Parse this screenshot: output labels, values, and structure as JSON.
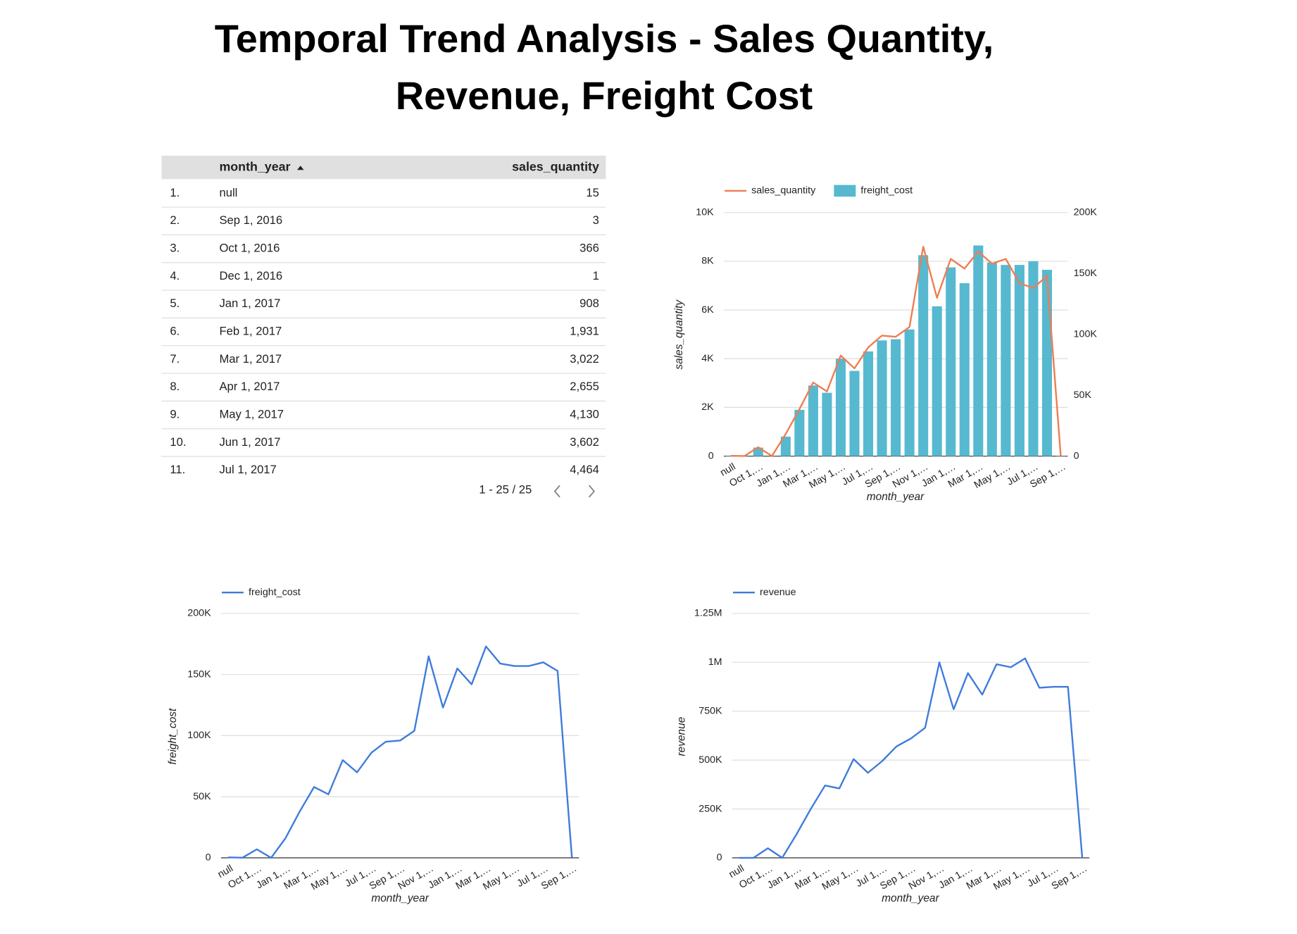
{
  "title": [
    "Temporal Trend Analysis - Sales Quantity,",
    "Revenue, Freight Cost"
  ],
  "table": {
    "columns": [
      "month_year",
      "sales_quantity"
    ],
    "rows": [
      [
        "1.",
        "null",
        "15"
      ],
      [
        "2.",
        "Sep 1, 2016",
        "3"
      ],
      [
        "3.",
        "Oct 1, 2016",
        "366"
      ],
      [
        "4.",
        "Dec 1, 2016",
        "1"
      ],
      [
        "5.",
        "Jan 1, 2017",
        "908"
      ],
      [
        "6.",
        "Feb 1, 2017",
        "1,931"
      ],
      [
        "7.",
        "Mar 1, 2017",
        "3,022"
      ],
      [
        "8.",
        "Apr 1, 2017",
        "2,655"
      ],
      [
        "9.",
        "May 1, 2017",
        "4,130"
      ],
      [
        "10.",
        "Jun 1, 2017",
        "3,602"
      ],
      [
        "11.",
        "Jul 1, 2017",
        "4,464"
      ]
    ],
    "pagination": "1 - 25 / 25"
  },
  "chart_data": [
    {
      "type": "combo",
      "categories": [
        "null",
        null,
        "Oct 1,…",
        null,
        "Jan 1,…",
        null,
        "Mar 1,…",
        null,
        "May 1,…",
        null,
        "Jul 1,…",
        null,
        "Sep 1,…",
        null,
        "Nov 1,…",
        null,
        "Jan 1,…",
        null,
        "Mar 1,…",
        null,
        "May 1,…",
        null,
        "Jul 1,…",
        null,
        "Sep 1,…"
      ],
      "x_label": "month_year",
      "y_label": "sales_quantity",
      "legend": "top",
      "grid": true,
      "ylim": [
        0,
        10000
      ],
      "yticks": [
        0,
        {
          "value": 2000,
          "label": "2K"
        },
        {
          "value": 4000,
          "label": "4K"
        },
        {
          "value": 6000,
          "label": "6K"
        },
        {
          "value": 8000,
          "label": "8K"
        },
        {
          "value": 10000,
          "label": "10K"
        }
      ],
      "y2lim": [
        0,
        200000
      ],
      "y2ticks": [
        0,
        {
          "value": 50000,
          "label": "50K"
        },
        {
          "value": 100000,
          "label": "100K"
        },
        {
          "value": 150000,
          "label": "150K"
        },
        {
          "value": 200000,
          "label": "200K"
        }
      ],
      "series": [
        {
          "name": "sales_quantity",
          "type": "line",
          "color": "#ef7d52",
          "values": [
            15,
            3,
            366,
            1,
            908,
            1931,
            3022,
            2655,
            4130,
            3602,
            4464,
            4950,
            4900,
            5300,
            8600,
            6500,
            8100,
            7700,
            8400,
            7900,
            8100,
            7100,
            6900,
            7400,
            0
          ]
        },
        {
          "name": "freight_cost",
          "type": "bar",
          "axis": "y2",
          "color": "#56b9d0",
          "values": [
            400,
            100,
            7000,
            50,
            16000,
            38000,
            58000,
            52000,
            80000,
            70000,
            86000,
            95000,
            96000,
            104000,
            165000,
            123000,
            155000,
            142000,
            173000,
            159000,
            157000,
            157000,
            160000,
            153000,
            200
          ]
        }
      ]
    },
    {
      "type": "line",
      "categories": [
        "null",
        null,
        "Oct 1,…",
        null,
        "Jan 1,…",
        null,
        "Mar 1,…",
        null,
        "May 1,…",
        null,
        "Jul 1,…",
        null,
        "Sep 1,…",
        null,
        "Nov 1,…",
        null,
        "Jan 1,…",
        null,
        "Mar 1,…",
        null,
        "May 1,…",
        null,
        "Jul 1,…",
        null,
        "Sep 1,…"
      ],
      "x_label": "month_year",
      "y_label": "freight_cost",
      "legend": "top",
      "grid": true,
      "ylim": [
        0,
        200000
      ],
      "yticks": [
        0,
        {
          "value": 50000,
          "label": "50K"
        },
        {
          "value": 100000,
          "label": "100K"
        },
        {
          "value": 150000,
          "label": "150K"
        },
        {
          "value": 200000,
          "label": "200K"
        }
      ],
      "series": [
        {
          "name": "freight_cost",
          "color": "#3f7bdb",
          "values": [
            400,
            100,
            7000,
            50,
            16000,
            38000,
            58000,
            52000,
            80000,
            70000,
            86000,
            95000,
            96000,
            104000,
            165000,
            123000,
            155000,
            142000,
            173000,
            159000,
            157000,
            157000,
            160000,
            153000,
            200
          ]
        }
      ]
    },
    {
      "type": "line",
      "categories": [
        "null",
        null,
        "Oct 1,…",
        null,
        "Jan 1,…",
        null,
        "Mar 1,…",
        null,
        "May 1,…",
        null,
        "Jul 1,…",
        null,
        "Sep 1,…",
        null,
        "Nov 1,…",
        null,
        "Jan 1,…",
        null,
        "Mar 1,…",
        null,
        "May 1,…",
        null,
        "Jul 1,…",
        null,
        "Sep 1,…"
      ],
      "x_label": "month_year",
      "y_label": "revenue",
      "legend": "top",
      "grid": true,
      "ylim": [
        0,
        1250000
      ],
      "yticks": [
        0,
        {
          "value": 250000,
          "label": "250K"
        },
        {
          "value": 500000,
          "label": "500K"
        },
        {
          "value": 750000,
          "label": "750K"
        },
        {
          "value": 1000000,
          "label": "1M"
        },
        {
          "value": 1250000,
          "label": "1.25M"
        }
      ],
      "series": [
        {
          "name": "revenue",
          "color": "#3f7bdb",
          "values": [
            0,
            300,
            49000,
            10,
            120000,
            250000,
            370000,
            355000,
            505000,
            435000,
            495000,
            570000,
            610000,
            665000,
            1000000,
            760000,
            945000,
            835000,
            990000,
            975000,
            1020000,
            870000,
            875000,
            875000,
            0
          ]
        }
      ]
    }
  ]
}
